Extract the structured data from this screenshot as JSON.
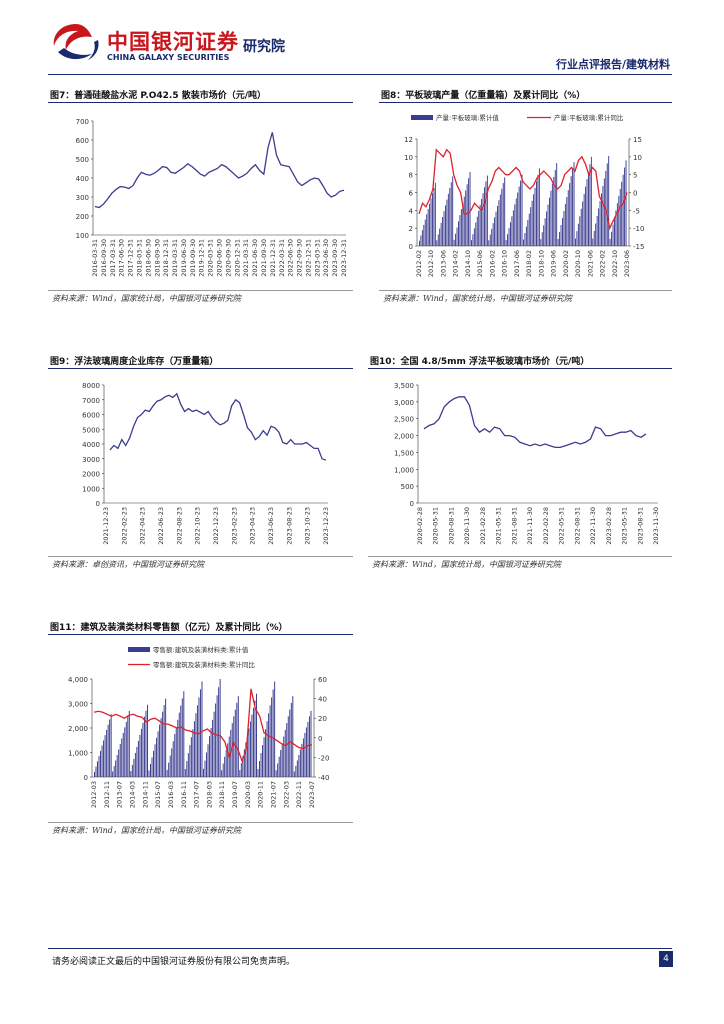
{
  "header": {
    "company_cn": "中国银河证券",
    "company_en": "CHINA GALAXY SECURITIES",
    "institute": "研究院",
    "report_type": "行业点评报告/建筑材料",
    "colors": {
      "brand_red": "#c8161d",
      "brand_blue": "#1a2a6c"
    }
  },
  "figures": [
    {
      "title": "图7：普通硅酸盐水泥 P.O42.5 散装市场价（元/吨）",
      "source": "资料来源：Wind，国家统计局，中国银河证券研究院"
    },
    {
      "title": "图8：平板玻璃产量（亿重量箱）及累计同比（%）",
      "source": "资料来源：Wind，国家统计局，中国银河证券研究院"
    },
    {
      "title": "图9：浮法玻璃周度企业库存（万重量箱）",
      "source": "资料来源：卓创资讯，中国银河证券研究院"
    },
    {
      "title": "图10：全国 4.8/5mm 浮法平板玻璃市场价（元/吨）",
      "source": "资料来源：Wind，国家统计局，中国银河证券研究院"
    },
    {
      "title": "图11：建筑及装潢类材料零售额（亿元）及累计同比（%）",
      "source": "资料来源：Wind，国家统计局，中国银河证券研究院"
    }
  ],
  "footer": {
    "disclaimer": "请务必阅读正文最后的中国银河证券股份有限公司免责声明。",
    "page_number": "4"
  },
  "chart_data": [
    {
      "id": "fig7",
      "type": "line",
      "ylim": [
        100,
        700
      ],
      "yticks": [
        "100",
        "200",
        "300",
        "400",
        "500",
        "600",
        "700"
      ],
      "xticks": [
        "2016-03-31",
        "2016-09-30",
        "2017-03-31",
        "2017-06-30",
        "2017-12-31",
        "2018-03-31",
        "2018-06-30",
        "2018-09-30",
        "2018-12-31",
        "2019-03-31",
        "2019-06-30",
        "2019-09-30",
        "2019-12-31",
        "2020-03-31",
        "2020-06-30",
        "2020-09-30",
        "2020-12-31",
        "2021-03-31",
        "2021-06-30",
        "2021-09-30",
        "2021-12-31",
        "2022-03-31",
        "2022-06-30",
        "2022-09-30",
        "2022-12-31",
        "2023-03-31",
        "2023-06-30",
        "2023-09-30",
        "2023-12-31"
      ],
      "series": [
        {
          "name": "P.O42.5",
          "color": "#3a3c8f",
          "values": [
            250,
            245,
            262,
            290,
            320,
            340,
            355,
            352,
            345,
            360,
            400,
            430,
            420,
            415,
            425,
            440,
            460,
            455,
            430,
            425,
            440,
            455,
            475,
            460,
            440,
            420,
            410,
            430,
            440,
            450,
            470,
            460,
            440,
            420,
            400,
            410,
            425,
            450,
            470,
            440,
            420,
            560,
            640,
            520,
            470,
            465,
            460,
            420,
            380,
            360,
            375,
            390,
            400,
            395,
            360,
            320,
            300,
            310,
            330,
            335
          ]
        }
      ]
    },
    {
      "id": "fig8",
      "type": "bar+line",
      "ylim_left": [
        0,
        12
      ],
      "yticks_left": [
        "0",
        "2",
        "4",
        "6",
        "8",
        "10",
        "12"
      ],
      "ylim_right": [
        -15,
        15
      ],
      "yticks_right": [
        "-15",
        "-10",
        "-5",
        "0",
        "5",
        "10",
        "15"
      ],
      "xticks": [
        "2012-02",
        "2012-10",
        "2013-06",
        "2014-02",
        "2014-10",
        "2015-06",
        "2016-02",
        "2016-10",
        "2017-06",
        "2018-02",
        "2018-10",
        "2019-06",
        "2020-02",
        "2020-10",
        "2021-06",
        "2022-02",
        "2022-10",
        "2023-06"
      ],
      "legend": [
        "产量:平板玻璃:累计值",
        "产量:平板玻璃:累计同比"
      ],
      "bar_color": "#3a3c8f",
      "line_color": "#e0202a",
      "annual_totals": [
        7.1,
        7.8,
        8.3,
        7.9,
        7.7,
        8.0,
        8.7,
        9.3,
        9.4,
        10.0,
        10.1,
        9.6
      ],
      "yoy_line": [
        -6,
        -3,
        -4,
        -2,
        1,
        12,
        11,
        10,
        12,
        11,
        5,
        2,
        0,
        -6,
        -6,
        -5,
        -3,
        -4,
        -5,
        -3,
        1,
        3,
        6,
        7,
        6,
        5,
        5,
        6,
        7,
        6,
        3,
        2,
        1,
        2,
        4,
        5,
        6,
        5,
        4,
        2,
        1,
        2,
        5,
        6,
        7,
        6,
        9,
        10,
        8,
        5,
        7,
        6,
        -1,
        -3,
        -5,
        -10,
        -8,
        -6,
        -4,
        -3,
        0
      ]
    },
    {
      "id": "fig9",
      "type": "line",
      "ylim": [
        0,
        8000
      ],
      "yticks": [
        "0",
        "1000",
        "2000",
        "3000",
        "4000",
        "5000",
        "6000",
        "7000",
        "8000"
      ],
      "xticks": [
        "2021-12-23",
        "2022-02-23",
        "2022-04-23",
        "2022-06-23",
        "2022-08-23",
        "2022-10-23",
        "2022-12-23",
        "2023-02-23",
        "2023-04-23",
        "2023-06-23",
        "2023-08-23",
        "2023-10-23",
        "2023-12-23"
      ],
      "series": [
        {
          "name": "浮法玻璃周度企业库存",
          "color": "#3a3c8f",
          "values": [
            3600,
            3900,
            3700,
            4300,
            3900,
            4400,
            5200,
            5800,
            6000,
            6300,
            6200,
            6600,
            6900,
            7000,
            7200,
            7300,
            7150,
            7400,
            6700,
            6200,
            6400,
            6200,
            6300,
            6150,
            6000,
            6200,
            5800,
            5500,
            5300,
            5400,
            5600,
            6600,
            7000,
            6800,
            6000,
            5100,
            4800,
            4300,
            4500,
            4900,
            4600,
            5200,
            5100,
            4800,
            4100,
            4000,
            4300,
            4000,
            4000,
            4000,
            4100,
            3900,
            3700,
            3700,
            3000,
            2900
          ]
        }
      ]
    },
    {
      "id": "fig10",
      "type": "line",
      "ylim": [
        0,
        3500
      ],
      "yticks": [
        "0",
        "500",
        "1,000",
        "1,500",
        "2,000",
        "2,500",
        "3,000",
        "3,500"
      ],
      "xticks": [
        "2020-02-28",
        "2020-05-31",
        "2020-08-31",
        "2020-11-30",
        "2021-02-28",
        "2021-05-31",
        "2021-08-31",
        "2021-11-30",
        "2022-02-28",
        "2022-05-31",
        "2022-08-31",
        "2022-11-30",
        "2023-02-28",
        "2023-05-31",
        "2023-08-31",
        "2023-11-30"
      ],
      "series": [
        {
          "name": "浮法平板玻璃市场价",
          "color": "#3a3c8f",
          "values": [
            2200,
            2300,
            2350,
            2500,
            2850,
            3000,
            3100,
            3150,
            3150,
            2900,
            2300,
            2100,
            2200,
            2100,
            2250,
            2200,
            2000,
            2000,
            1950,
            1800,
            1750,
            1700,
            1750,
            1700,
            1750,
            1700,
            1650,
            1650,
            1700,
            1750,
            1800,
            1750,
            1800,
            1900,
            2250,
            2200,
            2000,
            2000,
            2050,
            2100,
            2100,
            2150,
            2000,
            1950,
            2050
          ]
        }
      ]
    },
    {
      "id": "fig11",
      "type": "bar+line",
      "ylim_left": [
        0,
        4000
      ],
      "yticks_left": [
        "0",
        "1,000",
        "2,000",
        "3,000",
        "4,000"
      ],
      "ylim_right": [
        -40,
        60
      ],
      "yticks_right": [
        "-40",
        "-20",
        "0",
        "20",
        "40",
        "60"
      ],
      "xticks": [
        "2012-03",
        "2012-11",
        "2013-07",
        "2014-03",
        "2014-11",
        "2015-07",
        "2016-03",
        "2016-11",
        "2017-07",
        "2018-03",
        "2018-11",
        "2019-07",
        "2020-03",
        "2020-11",
        "2021-07",
        "2022-03",
        "2022-11",
        "2023-07"
      ],
      "legend": [
        "零售额:建筑及装潢材料类:累计值",
        "零售额:建筑及装潢材料类:累计同比"
      ],
      "bar_color": "#3a3c8f",
      "line_color": "#e0202a",
      "annual_totals": [
        2560,
        2700,
        2950,
        3200,
        3500,
        3900,
        4000,
        3300,
        3400,
        3900,
        3300,
        2700
      ],
      "yoy_line": [
        26,
        27,
        26,
        24,
        22,
        24,
        22,
        20,
        23,
        24,
        22,
        21,
        16,
        19,
        20,
        17,
        14,
        14,
        12,
        10,
        11,
        8,
        7,
        5,
        4,
        7,
        9,
        5,
        3,
        2,
        -4,
        -20,
        -5,
        -12,
        -24,
        -10,
        50,
        30,
        22,
        5,
        2,
        0,
        -3,
        -6,
        -8,
        -4,
        -7,
        -10,
        -11,
        -8,
        -7
      ]
    }
  ]
}
